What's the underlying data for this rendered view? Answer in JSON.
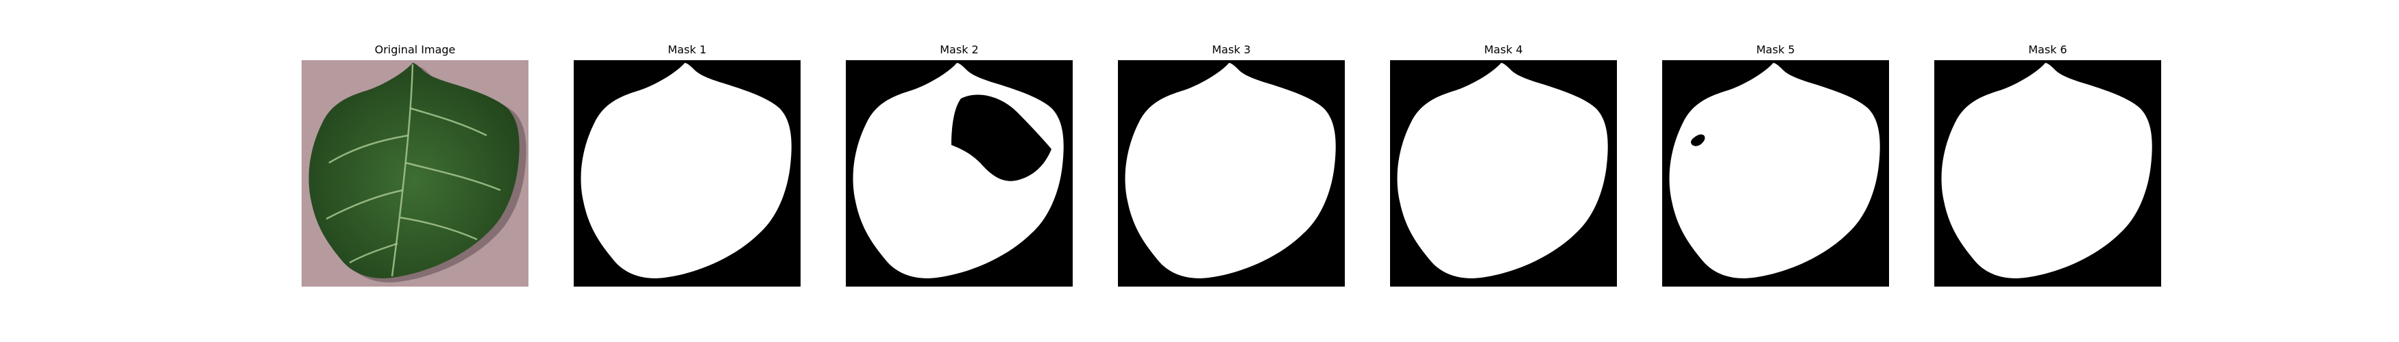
{
  "figure": {
    "panels": [
      {
        "kind": "original",
        "title": "Original Image",
        "icon": "leaf-photo"
      },
      {
        "kind": "mask",
        "title": "Mask 1",
        "variant": "clean"
      },
      {
        "kind": "mask",
        "title": "Mask 2",
        "variant": "hole"
      },
      {
        "kind": "mask",
        "title": "Mask 3",
        "variant": "clean"
      },
      {
        "kind": "mask",
        "title": "Mask 4",
        "variant": "clean"
      },
      {
        "kind": "mask",
        "title": "Mask 5",
        "variant": "speck"
      },
      {
        "kind": "mask",
        "title": "Mask 6",
        "variant": "clean"
      }
    ],
    "colors": {
      "background_photo": "#b59a9e",
      "leaf": "#3e6e32",
      "leaf_dark": "#1f3f1a",
      "vein": "#a7c78e",
      "mask_background": "#000000",
      "mask_foreground": "#ffffff"
    }
  }
}
